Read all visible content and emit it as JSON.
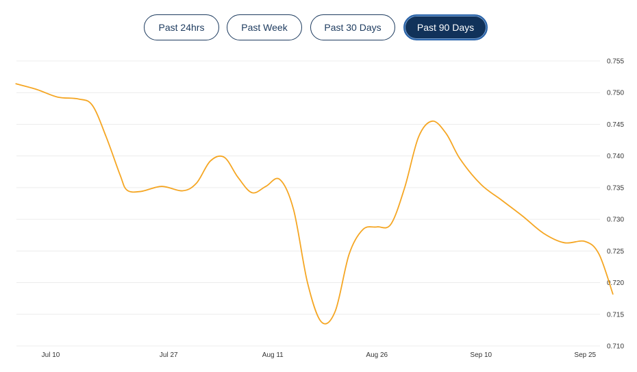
{
  "range_tabs": [
    {
      "label": "Past 24hrs",
      "active": false
    },
    {
      "label": "Past Week",
      "active": false
    },
    {
      "label": "Past 30 Days",
      "active": false
    },
    {
      "label": "Past 90 Days",
      "active": true
    }
  ],
  "colors": {
    "line": "#f5a623",
    "grid": "#ececec",
    "tab_active_bg": "#11325a",
    "tab_border": "#1c3a5e"
  },
  "chart_data": {
    "type": "line",
    "title": "",
    "xlabel": "",
    "ylabel": "",
    "ylim": [
      0.71,
      0.755
    ],
    "y_ticks": [
      "0.755",
      "0.750",
      "0.745",
      "0.740",
      "0.735",
      "0.730",
      "0.725",
      "0.720",
      "0.715",
      "0.710"
    ],
    "x_ticks": [
      "Jul 10",
      "Jul 27",
      "Aug 11",
      "Aug 26",
      "Sep 10",
      "Sep 25"
    ],
    "grid": "horizontal",
    "legend": "none",
    "series": [
      {
        "x": [
          "Jul 5",
          "Jul 8",
          "Jul 11",
          "Jul 14",
          "Jul 16",
          "Jul 18",
          "Jul 20",
          "Jul 21",
          "Jul 23",
          "Jul 26",
          "Jul 29",
          "Jul 31",
          "Aug 2",
          "Aug 4",
          "Aug 6",
          "Aug 8",
          "Aug 10",
          "Aug 12",
          "Aug 14",
          "Aug 16",
          "Aug 18",
          "Aug 20",
          "Aug 22",
          "Aug 24",
          "Aug 26",
          "Aug 28",
          "Aug 30",
          "Sep 1",
          "Sep 3",
          "Sep 5",
          "Sep 7",
          "Sep 10",
          "Sep 13",
          "Sep 16",
          "Sep 19",
          "Sep 22",
          "Sep 25",
          "Sep 27",
          "Sep 29"
        ],
        "values": [
          0.7514,
          0.7505,
          0.7493,
          0.749,
          0.748,
          0.743,
          0.737,
          0.7346,
          0.7344,
          0.7352,
          0.7345,
          0.7357,
          0.7392,
          0.7398,
          0.7366,
          0.7342,
          0.7352,
          0.7363,
          0.7315,
          0.72,
          0.7138,
          0.7155,
          0.7245,
          0.7284,
          0.7288,
          0.7292,
          0.735,
          0.743,
          0.7455,
          0.7435,
          0.7395,
          0.7355,
          0.733,
          0.7305,
          0.7278,
          0.7263,
          0.7265,
          0.7245,
          0.7182
        ]
      }
    ]
  }
}
